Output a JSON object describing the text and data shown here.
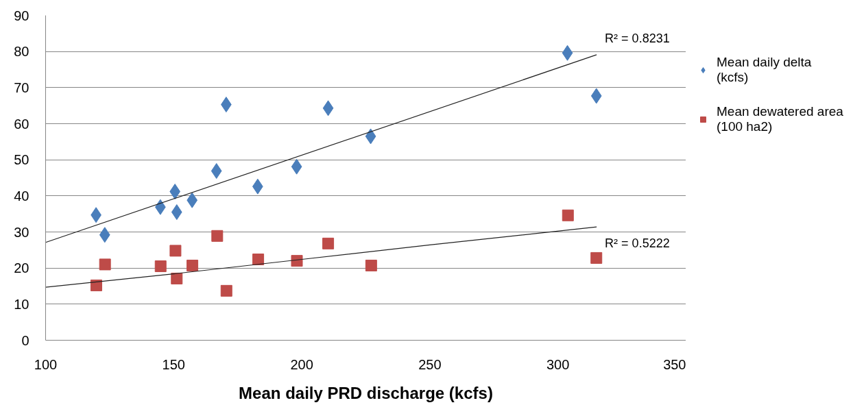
{
  "chart_data": {
    "type": "scatter",
    "xlabel": "Mean daily PRD discharge (kcfs)",
    "xlim": [
      100,
      350
    ],
    "xticks": [
      100,
      150,
      200,
      250,
      300,
      350
    ],
    "ylim": [
      0,
      90
    ],
    "yticks": [
      0,
      10,
      20,
      30,
      40,
      50,
      60,
      70,
      80,
      90
    ],
    "grid": "y",
    "legend": "right",
    "series": [
      {
        "name": "Mean daily delta (kcfs)",
        "color": "#4a7ebb",
        "marker": "diamond",
        "x": [
          119.7,
          123.1,
          144.8,
          150.5,
          151.2,
          157.2,
          166.7,
          170.5,
          182.8,
          198.0,
          210.3,
          226.9,
          303.7,
          315.0
        ],
        "values": [
          34.7,
          29.2,
          36.9,
          41.2,
          35.5,
          38.8,
          46.9,
          65.3,
          42.6,
          48.1,
          64.3,
          56.5,
          79.6,
          67.7
        ]
      },
      {
        "name": "Mean dewatered area (100 ha2)",
        "color": "#be4b48",
        "marker": "square",
        "x": [
          119.8,
          123.2,
          144.9,
          150.7,
          151.2,
          157.3,
          167.0,
          170.6,
          183.0,
          198.1,
          210.3,
          227.1,
          303.9,
          315.0
        ],
        "values": [
          15.2,
          21.0,
          20.5,
          24.8,
          17.1,
          20.7,
          28.9,
          13.7,
          22.4,
          22.0,
          26.8,
          20.7,
          34.6,
          22.8
        ]
      },
      {
        "type": "line",
        "color": "#222222",
        "marker": "none",
        "x": [
          100,
          315.1
        ],
        "values": [
          27.1,
          79.1
        ]
      },
      {
        "type": "line",
        "color": "#222222",
        "marker": "none",
        "x": [
          100,
          150,
          200,
          250,
          315.1
        ],
        "values": [
          14.7,
          18.4,
          22.4,
          26.4,
          31.4
        ]
      }
    ],
    "annotations": [
      "R² = 0.8231",
      "R² = 0.5222"
    ]
  }
}
